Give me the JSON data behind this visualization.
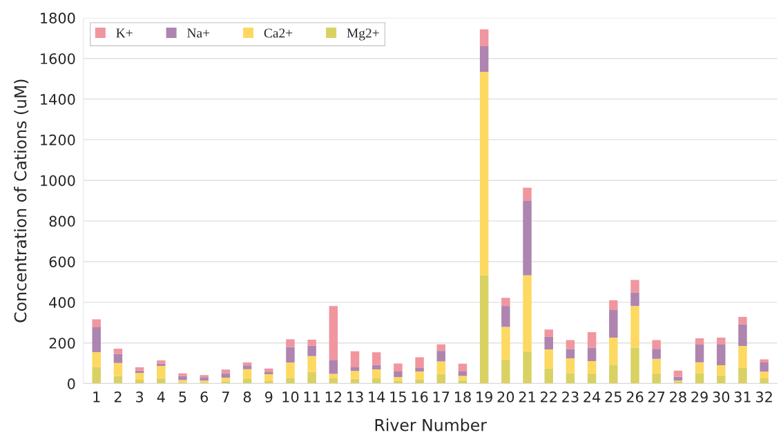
{
  "chart_data": {
    "type": "bar",
    "stacked": true,
    "xlabel": "River Number",
    "ylabel": "Concentration of Cations (uM)",
    "categories": [
      "1",
      "2",
      "3",
      "4",
      "5",
      "6",
      "7",
      "8",
      "9",
      "10",
      "11",
      "12",
      "13",
      "14",
      "15",
      "16",
      "17",
      "18",
      "19",
      "20",
      "21",
      "22",
      "23",
      "24",
      "25",
      "26",
      "27",
      "28",
      "29",
      "30",
      "31",
      "32"
    ],
    "series": [
      {
        "name": "Mg2+",
        "color": "#d9d263",
        "values": [
          82,
          38,
          19,
          27,
          6,
          6,
          11,
          25,
          12,
          28,
          57,
          26,
          23,
          28,
          12,
          19,
          47,
          16,
          533,
          118,
          159,
          74,
          51,
          51,
          93,
          177,
          50,
          9,
          50,
          40,
          77,
          26
        ]
      },
      {
        "name": "Ca2+",
        "color": "#fdd962",
        "values": [
          73,
          63,
          33,
          60,
          11,
          9,
          18,
          46,
          34,
          76,
          78,
          22,
          39,
          42,
          20,
          41,
          62,
          22,
          1001,
          161,
          374,
          94,
          73,
          60,
          133,
          205,
          72,
          6,
          55,
          50,
          108,
          33
        ]
      },
      {
        "name": "Na+",
        "color": "#ad85b0",
        "values": [
          122,
          45,
          13,
          12,
          20,
          17,
          22,
          18,
          13,
          76,
          51,
          66,
          18,
          21,
          28,
          17,
          52,
          22,
          126,
          103,
          366,
          62,
          46,
          66,
          136,
          67,
          49,
          19,
          87,
          102,
          107,
          45
        ]
      },
      {
        "name": "K+",
        "color": "#f0969f",
        "values": [
          39,
          26,
          15,
          15,
          13,
          10,
          18,
          15,
          15,
          38,
          30,
          268,
          79,
          63,
          39,
          52,
          32,
          38,
          83,
          40,
          65,
          36,
          44,
          76,
          48,
          61,
          43,
          30,
          31,
          34,
          36,
          15
        ]
      }
    ],
    "ylim": [
      0,
      1800
    ],
    "yticks": [
      0,
      200,
      400,
      600,
      800,
      1000,
      1200,
      1400,
      1600,
      1800
    ],
    "grid": "y",
    "legend": "top left"
  }
}
